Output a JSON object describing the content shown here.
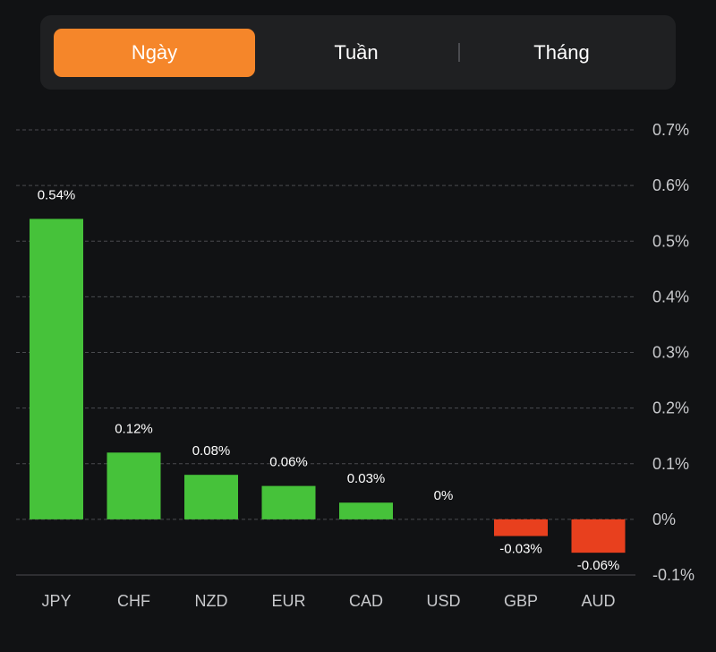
{
  "tabs": [
    {
      "label": "Ngày",
      "active": true
    },
    {
      "label": "Tuần",
      "active": false
    },
    {
      "label": "Tháng",
      "active": false
    }
  ],
  "colors": {
    "accent": "#f5862a",
    "positive": "#46c23a",
    "negative": "#e8401e",
    "background": "#111214",
    "panel": "#1f2022",
    "grid": "#4a4b4f",
    "axis_text": "#c8c9cc"
  },
  "chart_data": {
    "type": "bar",
    "categories": [
      "JPY",
      "CHF",
      "NZD",
      "EUR",
      "CAD",
      "USD",
      "GBP",
      "AUD"
    ],
    "values": [
      0.54,
      0.12,
      0.08,
      0.06,
      0.03,
      0,
      -0.03,
      -0.06
    ],
    "data_labels": [
      "0.54%",
      "0.12%",
      "0.08%",
      "0.06%",
      "0.03%",
      "0%",
      "-0.03%",
      "-0.06%"
    ],
    "yticks": [
      0.7,
      0.6,
      0.5,
      0.4,
      0.3,
      0.2,
      0.1,
      0,
      -0.1
    ],
    "ytick_labels": [
      "0.7%",
      "0.6%",
      "0.5%",
      "0.4%",
      "0.3%",
      "0.2%",
      "0.1%",
      "0%",
      "-0.1%"
    ],
    "ylim": [
      -0.1,
      0.7
    ],
    "grid": true,
    "yaxis_position": "right",
    "title": "",
    "xlabel": "",
    "ylabel": ""
  }
}
